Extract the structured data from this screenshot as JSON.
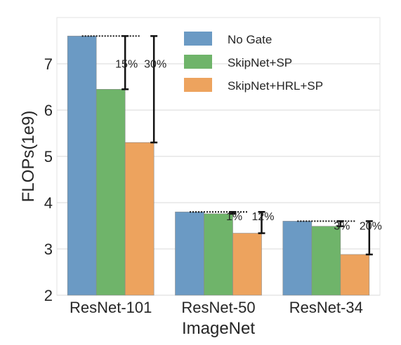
{
  "chart_data": {
    "type": "bar",
    "title": "",
    "xlabel": "ImageNet",
    "ylabel": "FLOPs(1e9)",
    "ylim": [
      2,
      8.0
    ],
    "yticks": [
      2,
      3,
      4,
      5,
      6,
      7
    ],
    "grid": true,
    "legend_position": "top-right",
    "categories": [
      "ResNet-101",
      "ResNet-50",
      "ResNet-34"
    ],
    "series": [
      {
        "name": "No Gate",
        "color": "#6b9ac4",
        "values": [
          7.6,
          3.8,
          3.6
        ]
      },
      {
        "name": "SkipNet+SP",
        "color": "#6fb46a",
        "values": [
          6.45,
          3.76,
          3.49
        ]
      },
      {
        "name": "SkipNet+HRL+SP",
        "color": "#eda35e",
        "values": [
          5.3,
          3.34,
          2.88
        ]
      }
    ],
    "reduction_labels": [
      [
        "15%",
        "30%"
      ],
      [
        "1%",
        "12%"
      ],
      [
        "3%",
        "20%"
      ]
    ]
  }
}
